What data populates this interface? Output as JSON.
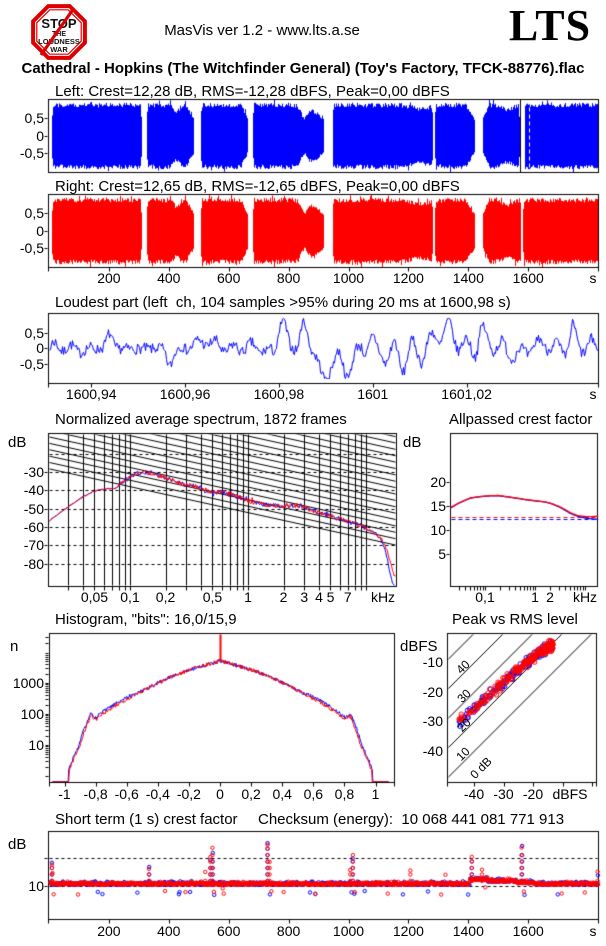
{
  "header": {
    "app_version": "MasVis ver 1.2 - www.lts.a.se",
    "brand": "LTS",
    "logo": {
      "line1": "STOP",
      "line2": "THE",
      "line3": "LOUDNESS",
      "line4": "WAR"
    }
  },
  "title": "Cathedral - Hopkins (The Witchfinder General) (Toy's Factory, TFCK-88776).flac",
  "checksum": "Checksum (energy):  10 068 441 081 771 913",
  "colors": {
    "left_channel": "#0000ff",
    "right_channel": "#ff0000",
    "axis": "#000000",
    "background": "#ffffff"
  },
  "chart_data": [
    {
      "id": "waveform-left",
      "type": "area",
      "channel": "Left",
      "color": "#0000ff",
      "title": "Left: Crest=12,28 dB, RMS=-12,28 dBFS, Peak=0,00 dBFS",
      "crest_db": "12,28",
      "rms_dbfs": "-12,28",
      "peak_dbfs": "0,00",
      "duration_s": 1833,
      "segments_s": [
        [
          8,
          308,
          6,
          4
        ],
        [
          326,
          483,
          2,
          28
        ],
        [
          506,
          662,
          3,
          22
        ],
        [
          680,
          916,
          3,
          60
        ],
        [
          946,
          1281,
          3,
          4
        ],
        [
          1287,
          1419,
          3,
          30
        ],
        [
          1447,
          1570,
          22,
          3
        ],
        [
          1586,
          1833,
          2,
          0
        ]
      ],
      "dips": [
        {
          "t": 425,
          "w": 12,
          "d": 0.22
        },
        {
          "t": 852,
          "w": 16,
          "d": 0.42
        },
        {
          "t": 1240,
          "w": 45,
          "d": 0.12
        },
        {
          "t": 1530,
          "w": 25,
          "d": 0.15
        }
      ],
      "marker_black_s": 1573,
      "marker_dash_s": 1601,
      "yticks": [
        {
          "v": 0.5,
          "t": "0,5"
        },
        {
          "v": 0,
          "t": "0"
        },
        {
          "v": -0.5,
          "t": "-0,5"
        }
      ]
    },
    {
      "id": "waveform-right",
      "type": "area",
      "channel": "Right",
      "color": "#ff0000",
      "title": "Right: Crest=12,65 dB, RMS=-12,65 dBFS, Peak=0,00 dBFS",
      "crest_db": "12,65",
      "rms_dbfs": "-12,65",
      "peak_dbfs": "0,00",
      "duration_s": 1833,
      "segments_s": [
        [
          8,
          308,
          6,
          4
        ],
        [
          326,
          483,
          2,
          28
        ],
        [
          506,
          662,
          3,
          22
        ],
        [
          680,
          916,
          3,
          60
        ],
        [
          946,
          1281,
          3,
          4
        ],
        [
          1287,
          1419,
          3,
          30
        ],
        [
          1447,
          1575,
          22,
          3
        ],
        [
          1582,
          1833,
          2,
          0
        ]
      ],
      "dips": [
        {
          "t": 425,
          "w": 12,
          "d": 0.22
        },
        {
          "t": 852,
          "w": 16,
          "d": 0.42
        },
        {
          "t": 1240,
          "w": 45,
          "d": 0.12
        },
        {
          "t": 1530,
          "w": 25,
          "d": 0.15
        }
      ],
      "yticks": [
        {
          "v": 0.5,
          "t": "0,5"
        },
        {
          "v": 0,
          "t": "0"
        },
        {
          "v": -0.5,
          "t": "-0,5"
        }
      ],
      "xticks": [
        {
          "v": 200,
          "t": "200"
        },
        {
          "v": 400,
          "t": "400"
        },
        {
          "v": 600,
          "t": "600"
        },
        {
          "v": 800,
          "t": "800"
        },
        {
          "v": 1000,
          "t": "1000"
        },
        {
          "v": 1200,
          "t": "1200"
        },
        {
          "v": 1400,
          "t": "1400"
        },
        {
          "v": 1600,
          "t": "1600"
        }
      ],
      "unit": "s"
    },
    {
      "id": "loudest-part",
      "type": "line",
      "channel": "left",
      "color": "#0000ff",
      "title": "Loudest part (left  ch, 104 samples >95% during 20 ms at 1600,98 s)",
      "samples_over_95pct": 104,
      "window_ms": 20,
      "at_s": "1600,98",
      "xlim_s": [
        1600.931,
        1601.048
      ],
      "xticks": [
        {
          "v": 1600.94,
          "t": "1600,94"
        },
        {
          "v": 1600.96,
          "t": "1600,96"
        },
        {
          "v": 1600.98,
          "t": "1600,98"
        },
        {
          "v": 1601,
          "t": "1601"
        },
        {
          "v": 1601.02,
          "t": "1601,02"
        }
      ],
      "unit": "s",
      "yticks": [
        {
          "v": 0.5,
          "t": "0,5"
        },
        {
          "v": 0,
          "t": "0"
        },
        {
          "v": -0.5,
          "t": "-0,5"
        }
      ]
    },
    {
      "id": "spectrum",
      "type": "line",
      "title": "Normalized average spectrum, 1872 frames",
      "frames": 1872,
      "ylabel": "dB",
      "ylabel_right": "dB",
      "unit": "kHz",
      "xlim_khz": [
        0.02,
        18
      ],
      "ylim_db": [
        -93,
        -9
      ],
      "xticks": [
        {
          "v": 0.05,
          "t": "0,05"
        },
        {
          "v": 0.1,
          "t": "0,1"
        },
        {
          "v": 0.2,
          "t": "0,2"
        },
        {
          "v": 0.5,
          "t": "0,5"
        },
        {
          "v": 1,
          "t": "1"
        },
        {
          "v": 2,
          "t": "2"
        },
        {
          "v": 3,
          "t": "3"
        },
        {
          "v": 4,
          "t": "4"
        },
        {
          "v": 5,
          "t": "5"
        },
        {
          "v": 7,
          "t": "7"
        }
      ],
      "yticks": [
        {
          "v": -30,
          "t": "-30"
        },
        {
          "v": -40,
          "t": "-40"
        },
        {
          "v": -50,
          "t": "-50"
        },
        {
          "v": -60,
          "t": "-60"
        },
        {
          "v": -70,
          "t": "-70"
        },
        {
          "v": -80,
          "t": "-80"
        }
      ],
      "dashed_levels_db": [
        -20,
        -30,
        -40,
        -50,
        -60,
        -70,
        -80
      ],
      "base_points": [
        [
          0.02,
          -57
        ],
        [
          0.024,
          -53
        ],
        [
          0.03,
          -48.5
        ],
        [
          0.04,
          -43
        ],
        [
          0.05,
          -40
        ],
        [
          0.055,
          -39.5
        ],
        [
          0.065,
          -38.8
        ],
        [
          0.075,
          -38.6
        ],
        [
          0.085,
          -35.5
        ],
        [
          0.1,
          -32
        ],
        [
          0.11,
          -30.5
        ],
        [
          0.13,
          -29.8
        ],
        [
          0.15,
          -30.5
        ],
        [
          0.18,
          -32
        ],
        [
          0.22,
          -34
        ],
        [
          0.27,
          -36
        ],
        [
          0.33,
          -37
        ],
        [
          0.4,
          -38.8
        ],
        [
          0.5,
          -41
        ],
        [
          0.57,
          -40.6
        ],
        [
          0.65,
          -41
        ],
        [
          0.75,
          -42.5
        ],
        [
          0.9,
          -44.5
        ],
        [
          1.1,
          -46.3
        ],
        [
          1.4,
          -47.6
        ],
        [
          1.8,
          -48.3
        ],
        [
          2.2,
          -48.2
        ],
        [
          2.7,
          -48
        ],
        [
          3.2,
          -49.8
        ],
        [
          4,
          -52
        ],
        [
          5,
          -54
        ],
        [
          6.5,
          -56
        ],
        [
          8,
          -58
        ],
        [
          10,
          -60.5
        ],
        [
          12,
          -63.5
        ]
      ],
      "tail_red": [
        [
          13,
          -65.5
        ],
        [
          14,
          -68
        ],
        [
          15,
          -73
        ],
        [
          16,
          -80
        ],
        [
          17,
          -86
        ],
        [
          18,
          -88
        ]
      ],
      "tail_blue": [
        [
          13,
          -66
        ],
        [
          14,
          -70
        ],
        [
          15,
          -77
        ],
        [
          16,
          -86
        ],
        [
          17,
          -92
        ],
        [
          18,
          -94
        ]
      ]
    },
    {
      "id": "allpassed-crest",
      "type": "line",
      "title": "Allpassed crest factor",
      "ylabel": "dB",
      "unit": "kHz",
      "xticks": [
        {
          "v": 0.1,
          "t": "0,1"
        },
        {
          "v": 1,
          "t": "1"
        },
        {
          "v": 2,
          "t": "2"
        }
      ],
      "yticks": [
        {
          "v": 20,
          "t": "20"
        },
        {
          "v": 15,
          "t": "15"
        },
        {
          "v": 10,
          "t": "10"
        },
        {
          "v": 5,
          "t": "5"
        }
      ],
      "series_red": [
        [
          0.02,
          14.8
        ],
        [
          0.03,
          15.8
        ],
        [
          0.05,
          16.8
        ],
        [
          0.08,
          17.1
        ],
        [
          0.12,
          17.25
        ],
        [
          0.18,
          17.3
        ],
        [
          0.25,
          17.1
        ],
        [
          0.4,
          16.8
        ],
        [
          0.6,
          16.5
        ],
        [
          1,
          16.2
        ],
        [
          1.5,
          16
        ],
        [
          2,
          15.7
        ],
        [
          3,
          15
        ],
        [
          4,
          14.3
        ],
        [
          5,
          13.7
        ],
        [
          7,
          13.1
        ],
        [
          10,
          12.9
        ],
        [
          14,
          12.9
        ],
        [
          18,
          13
        ]
      ],
      "series_blue": [
        [
          0.02,
          14.7
        ],
        [
          0.03,
          15.75
        ],
        [
          0.05,
          16.75
        ],
        [
          0.08,
          17.05
        ],
        [
          0.12,
          17.2
        ],
        [
          0.18,
          17.25
        ],
        [
          0.25,
          17.05
        ],
        [
          0.4,
          16.75
        ],
        [
          0.6,
          16.45
        ],
        [
          1,
          16.15
        ],
        [
          1.5,
          15.95
        ],
        [
          2,
          15.65
        ],
        [
          3,
          14.9
        ],
        [
          4,
          14.15
        ],
        [
          5,
          13.55
        ],
        [
          7,
          12.95
        ],
        [
          10,
          12.6
        ],
        [
          14,
          12.4
        ],
        [
          18,
          12.35
        ]
      ],
      "dashed_red_db": 12.8,
      "dashed_blue_db": 12.3
    },
    {
      "id": "histogram",
      "type": "line",
      "title": "Histogram, \"bits\": 16,0/15,9",
      "bits_left": "16,0",
      "bits_right": "15,9",
      "ylabel": "n",
      "ylog": true,
      "yticks": [
        {
          "v": 1000,
          "t": "1000"
        },
        {
          "v": 100,
          "t": "100"
        },
        {
          "v": 10,
          "t": "10"
        }
      ],
      "xticks": [
        {
          "v": -1,
          "t": "-1"
        },
        {
          "v": -0.8,
          "t": "-0,8"
        },
        {
          "v": -0.6,
          "t": "-0,6"
        },
        {
          "v": -0.4,
          "t": "-0,4"
        },
        {
          "v": -0.2,
          "t": "-0,2"
        },
        {
          "v": 0,
          "t": "0"
        },
        {
          "v": 0.2,
          "t": "0,2"
        },
        {
          "v": 0.4,
          "t": "0,4"
        },
        {
          "v": 0.6,
          "t": "0,6"
        },
        {
          "v": 0.8,
          "t": "0,8"
        },
        {
          "v": 1,
          "t": "1"
        }
      ],
      "envelope": [
        [
          0,
          5500
        ],
        [
          0.05,
          4600
        ],
        [
          0.1,
          3900
        ],
        [
          0.15,
          3300
        ],
        [
          0.2,
          2750
        ],
        [
          0.25,
          2250
        ],
        [
          0.3,
          1800
        ],
        [
          0.35,
          1400
        ],
        [
          0.4,
          1050
        ],
        [
          0.45,
          790
        ],
        [
          0.5,
          590
        ],
        [
          0.55,
          440
        ],
        [
          0.6,
          320
        ],
        [
          0.65,
          230
        ],
        [
          0.7,
          160
        ],
        [
          0.75,
          112
        ],
        [
          0.78,
          84
        ],
        [
          0.8,
          70
        ],
        [
          0.83,
          93
        ],
        [
          0.85,
          58
        ],
        [
          0.88,
          24
        ],
        [
          0.9,
          11
        ],
        [
          0.93,
          5.5
        ],
        [
          0.955,
          2.8
        ],
        [
          0.975,
          1.4
        ]
      ],
      "zero_spike_n": 40000
    },
    {
      "id": "peak-vs-rms",
      "type": "scatter",
      "title": "Peak vs RMS level",
      "ylabel": "dBFS",
      "unit": "dBFS",
      "xlim_dbfs": [
        -50,
        2
      ],
      "ylim_dbfs": [
        -51,
        0
      ],
      "xticks": [
        {
          "v": -40,
          "t": "-40"
        },
        {
          "v": -30,
          "t": "-30"
        },
        {
          "v": -20,
          "t": "-20"
        }
      ],
      "yticks": [
        {
          "v": -10,
          "t": "-10"
        },
        {
          "v": -20,
          "t": "-20"
        },
        {
          "v": -30,
          "t": "-30"
        },
        {
          "v": -40,
          "t": "-40"
        }
      ],
      "crest_lines_db": [
        {
          "c": 40,
          "t": "40"
        },
        {
          "c": 30,
          "t": "30"
        },
        {
          "c": 20,
          "t": "20"
        },
        {
          "c": 10,
          "t": "10"
        },
        {
          "c": 0,
          "t": "0 dB"
        }
      ],
      "points_red": 215,
      "points_blue": 185
    },
    {
      "id": "shortterm-crest",
      "type": "scatter",
      "title": "Short term (1 s) crest factor",
      "ylabel": "dB",
      "unit": "s",
      "yticks": [
        {
          "v": 10,
          "t": "10"
        }
      ],
      "xticks": [
        {
          "v": 200,
          "t": "200"
        },
        {
          "v": 400,
          "t": "400"
        },
        {
          "v": 600,
          "t": "600"
        },
        {
          "v": 800,
          "t": "800"
        },
        {
          "v": 1000,
          "t": "1000"
        },
        {
          "v": 1200,
          "t": "1200"
        },
        {
          "v": 1400,
          "t": "1400"
        },
        {
          "v": 1600,
          "t": "1600"
        }
      ],
      "dashed_db": [
        10,
        20
      ],
      "typical_db": 11,
      "spikes_red": [
        [
          8,
          17.8
        ],
        [
          10,
          14.8
        ],
        [
          332,
          16.3
        ],
        [
          520,
          15.2
        ],
        [
          537,
          20.5
        ],
        [
          544,
          23.8
        ],
        [
          549,
          8.1
        ],
        [
          578,
          9.3
        ],
        [
          728,
          24.9
        ],
        [
          735,
          18.8
        ],
        [
          741,
          8.3
        ],
        [
          1004,
          15.9
        ],
        [
          1013,
          21.2
        ],
        [
          1019,
          8
        ],
        [
          1205,
          15.7
        ],
        [
          1322,
          14.2
        ],
        [
          1410,
          20.6
        ],
        [
          1444,
          16
        ],
        [
          1576,
          23.9
        ],
        [
          1584,
          8.2
        ],
        [
          1830,
          15.3
        ]
      ],
      "spikes_blue": [
        [
          8,
          18.5
        ],
        [
          333,
          17
        ],
        [
          537,
          19.5
        ],
        [
          545,
          22
        ],
        [
          550,
          7
        ],
        [
          728,
          25.5
        ],
        [
          736,
          7.2
        ],
        [
          1012,
          20
        ],
        [
          1018,
          7.4
        ],
        [
          1410,
          19
        ],
        [
          1578,
          24.5
        ],
        [
          1586,
          7
        ],
        [
          1831,
          14
        ]
      ]
    }
  ]
}
